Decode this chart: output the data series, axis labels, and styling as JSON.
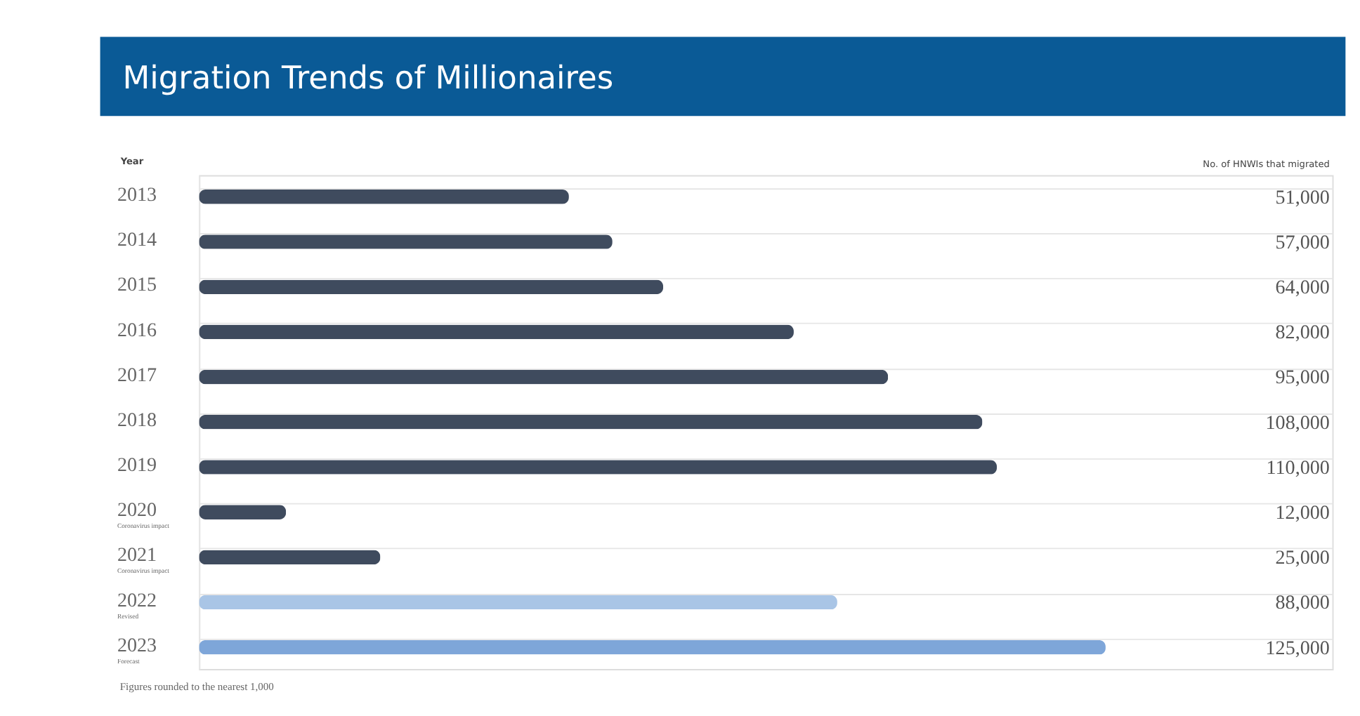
{
  "chart_data": {
    "type": "bar",
    "orientation": "horizontal",
    "title": "Migration Trends of Millionaires",
    "ylabel": "Year",
    "categories": [
      "2013",
      "2014",
      "2015",
      "2016",
      "2017",
      "2018",
      "2019",
      "2020\nCoronavirus impact",
      "2021\nCoronavirus impact",
      "2022\nRevised",
      "2023\nForecast"
    ],
    "values": [
      51000,
      57000,
      64000,
      82000,
      95000,
      108000,
      110000,
      12000,
      25000,
      88000,
      125000
    ],
    "value_labels": [
      "51,000",
      "57,000",
      "64,000",
      "82,000",
      "95,000",
      "108,000",
      "110,000",
      "12,000",
      "25,000",
      "88,000",
      "125,000"
    ],
    "colors": [
      "#3f4b5e",
      "#3f4b5e",
      "#3f4b5e",
      "#3f4b5e",
      "#3f4b5e",
      "#3f4b5e",
      "#3f4b5e",
      "#3f4b5e",
      "#3f4b5e",
      "#a9c5e6",
      "#7ea6d9"
    ],
    "grid": "y",
    "tick_labels": "y",
    "annotations": [
      "No. of HNWIs that migrated",
      "Figures rounded to the nearest 1,000"
    ]
  }
}
